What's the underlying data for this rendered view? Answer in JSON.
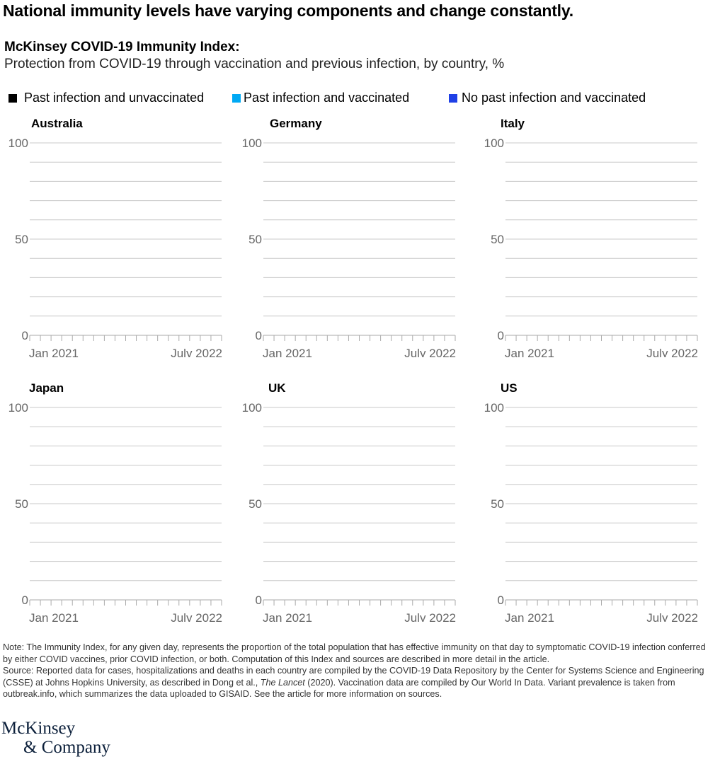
{
  "headline": "National immunity levels have varying components and change constantly.",
  "subtitle_bold": "McKinsey COVID-19 Immunity Index:",
  "subtitle": "Protection from COVID-19 through vaccination and previous infection, by country, %",
  "legend": [
    {
      "label": "Past infection and unvaccinated",
      "color": "#000000"
    },
    {
      "label": "Past infection and vaccinated",
      "color": "#00a9f4"
    },
    {
      "label": "No past infection and vaccinated",
      "color": "#1f40e6"
    }
  ],
  "chart_data": [
    {
      "type": "area",
      "title": "Australia",
      "ylim": [
        0,
        100
      ],
      "yticks": [
        "100",
        "50",
        "0"
      ],
      "xticks": [
        "Jan 2021",
        "July 2022"
      ],
      "grid": true,
      "series": [
        {
          "name": "Past infection and unvaccinated",
          "values": []
        },
        {
          "name": "Past infection and vaccinated",
          "values": []
        },
        {
          "name": "No past infection and vaccinated",
          "values": []
        }
      ]
    },
    {
      "type": "area",
      "title": "Germany",
      "ylim": [
        0,
        100
      ],
      "yticks": [
        "100",
        "50",
        "0"
      ],
      "xticks": [
        "Jan 2021",
        "July 2022"
      ],
      "grid": true,
      "series": [
        {
          "name": "Past infection and unvaccinated",
          "values": []
        },
        {
          "name": "Past infection and vaccinated",
          "values": []
        },
        {
          "name": "No past infection and vaccinated",
          "values": []
        }
      ]
    },
    {
      "type": "area",
      "title": "Italy",
      "ylim": [
        0,
        100
      ],
      "yticks": [
        "100",
        "50",
        "0"
      ],
      "xticks": [
        "Jan 2021",
        "July 2022"
      ],
      "grid": true,
      "series": [
        {
          "name": "Past infection and unvaccinated",
          "values": []
        },
        {
          "name": "Past infection and vaccinated",
          "values": []
        },
        {
          "name": "No past infection and vaccinated",
          "values": []
        }
      ]
    },
    {
      "type": "area",
      "title": "Japan",
      "ylim": [
        0,
        100
      ],
      "yticks": [
        "100",
        "50",
        "0"
      ],
      "xticks": [
        "Jan 2021",
        "July 2022"
      ],
      "grid": true,
      "series": [
        {
          "name": "Past infection and unvaccinated",
          "values": []
        },
        {
          "name": "Past infection and vaccinated",
          "values": []
        },
        {
          "name": "No past infection and vaccinated",
          "values": []
        }
      ]
    },
    {
      "type": "area",
      "title": "UK",
      "ylim": [
        0,
        100
      ],
      "yticks": [
        "100",
        "50",
        "0"
      ],
      "xticks": [
        "Jan 2021",
        "July 2022"
      ],
      "grid": true,
      "series": [
        {
          "name": "Past infection and unvaccinated",
          "values": []
        },
        {
          "name": "Past infection and vaccinated",
          "values": []
        },
        {
          "name": "No past infection and vaccinated",
          "values": []
        }
      ]
    },
    {
      "type": "area",
      "title": "US",
      "ylim": [
        0,
        100
      ],
      "yticks": [
        "100",
        "50",
        "0"
      ],
      "xticks": [
        "Jan 2021",
        "July 2022"
      ],
      "grid": true,
      "series": [
        {
          "name": "Past infection and unvaccinated",
          "values": []
        },
        {
          "name": "Past infection and vaccinated",
          "values": []
        },
        {
          "name": "No past infection and vaccinated",
          "values": []
        }
      ]
    }
  ],
  "note": {
    "line1": "Note: The Immunity Index, for any given day, represents the proportion of the total population that has effective immunity on that day to symptomatic COVID-19 infection conferred by either COVID vaccines, prior COVID infection, or both. Computation of this Index and sources are described in more detail in the article.",
    "source_a": "Source: Reported data for cases, hospitalizations and deaths in each country are compiled by the COVID-19 Data Repository by the Center for Systems Science and Engineering (CSSE) at Johns Hopkins University, as described in Dong et al., ",
    "source_journal": "The Lancet",
    "source_b": " (2020). Vaccination data are compiled by Our World In Data. Variant prevalence is taken from outbreak.info, which summarizes the data uploaded to GISAID. See the article for more information on sources."
  },
  "logo": {
    "line1": "McKinsey",
    "line2": "& Company"
  }
}
